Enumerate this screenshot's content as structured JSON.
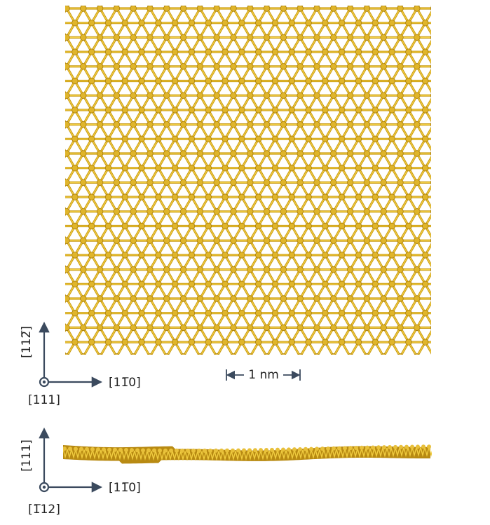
{
  "top_panel": {
    "axis_vertical": "[112̅]",
    "axis_horizontal": "[11̅0]",
    "axis_out": "[111]",
    "scale_bar": "1 nm"
  },
  "side_panel": {
    "axis_vertical": "[111]",
    "axis_horizontal": "[11̅0]",
    "axis_out": "[1̅12]"
  }
}
